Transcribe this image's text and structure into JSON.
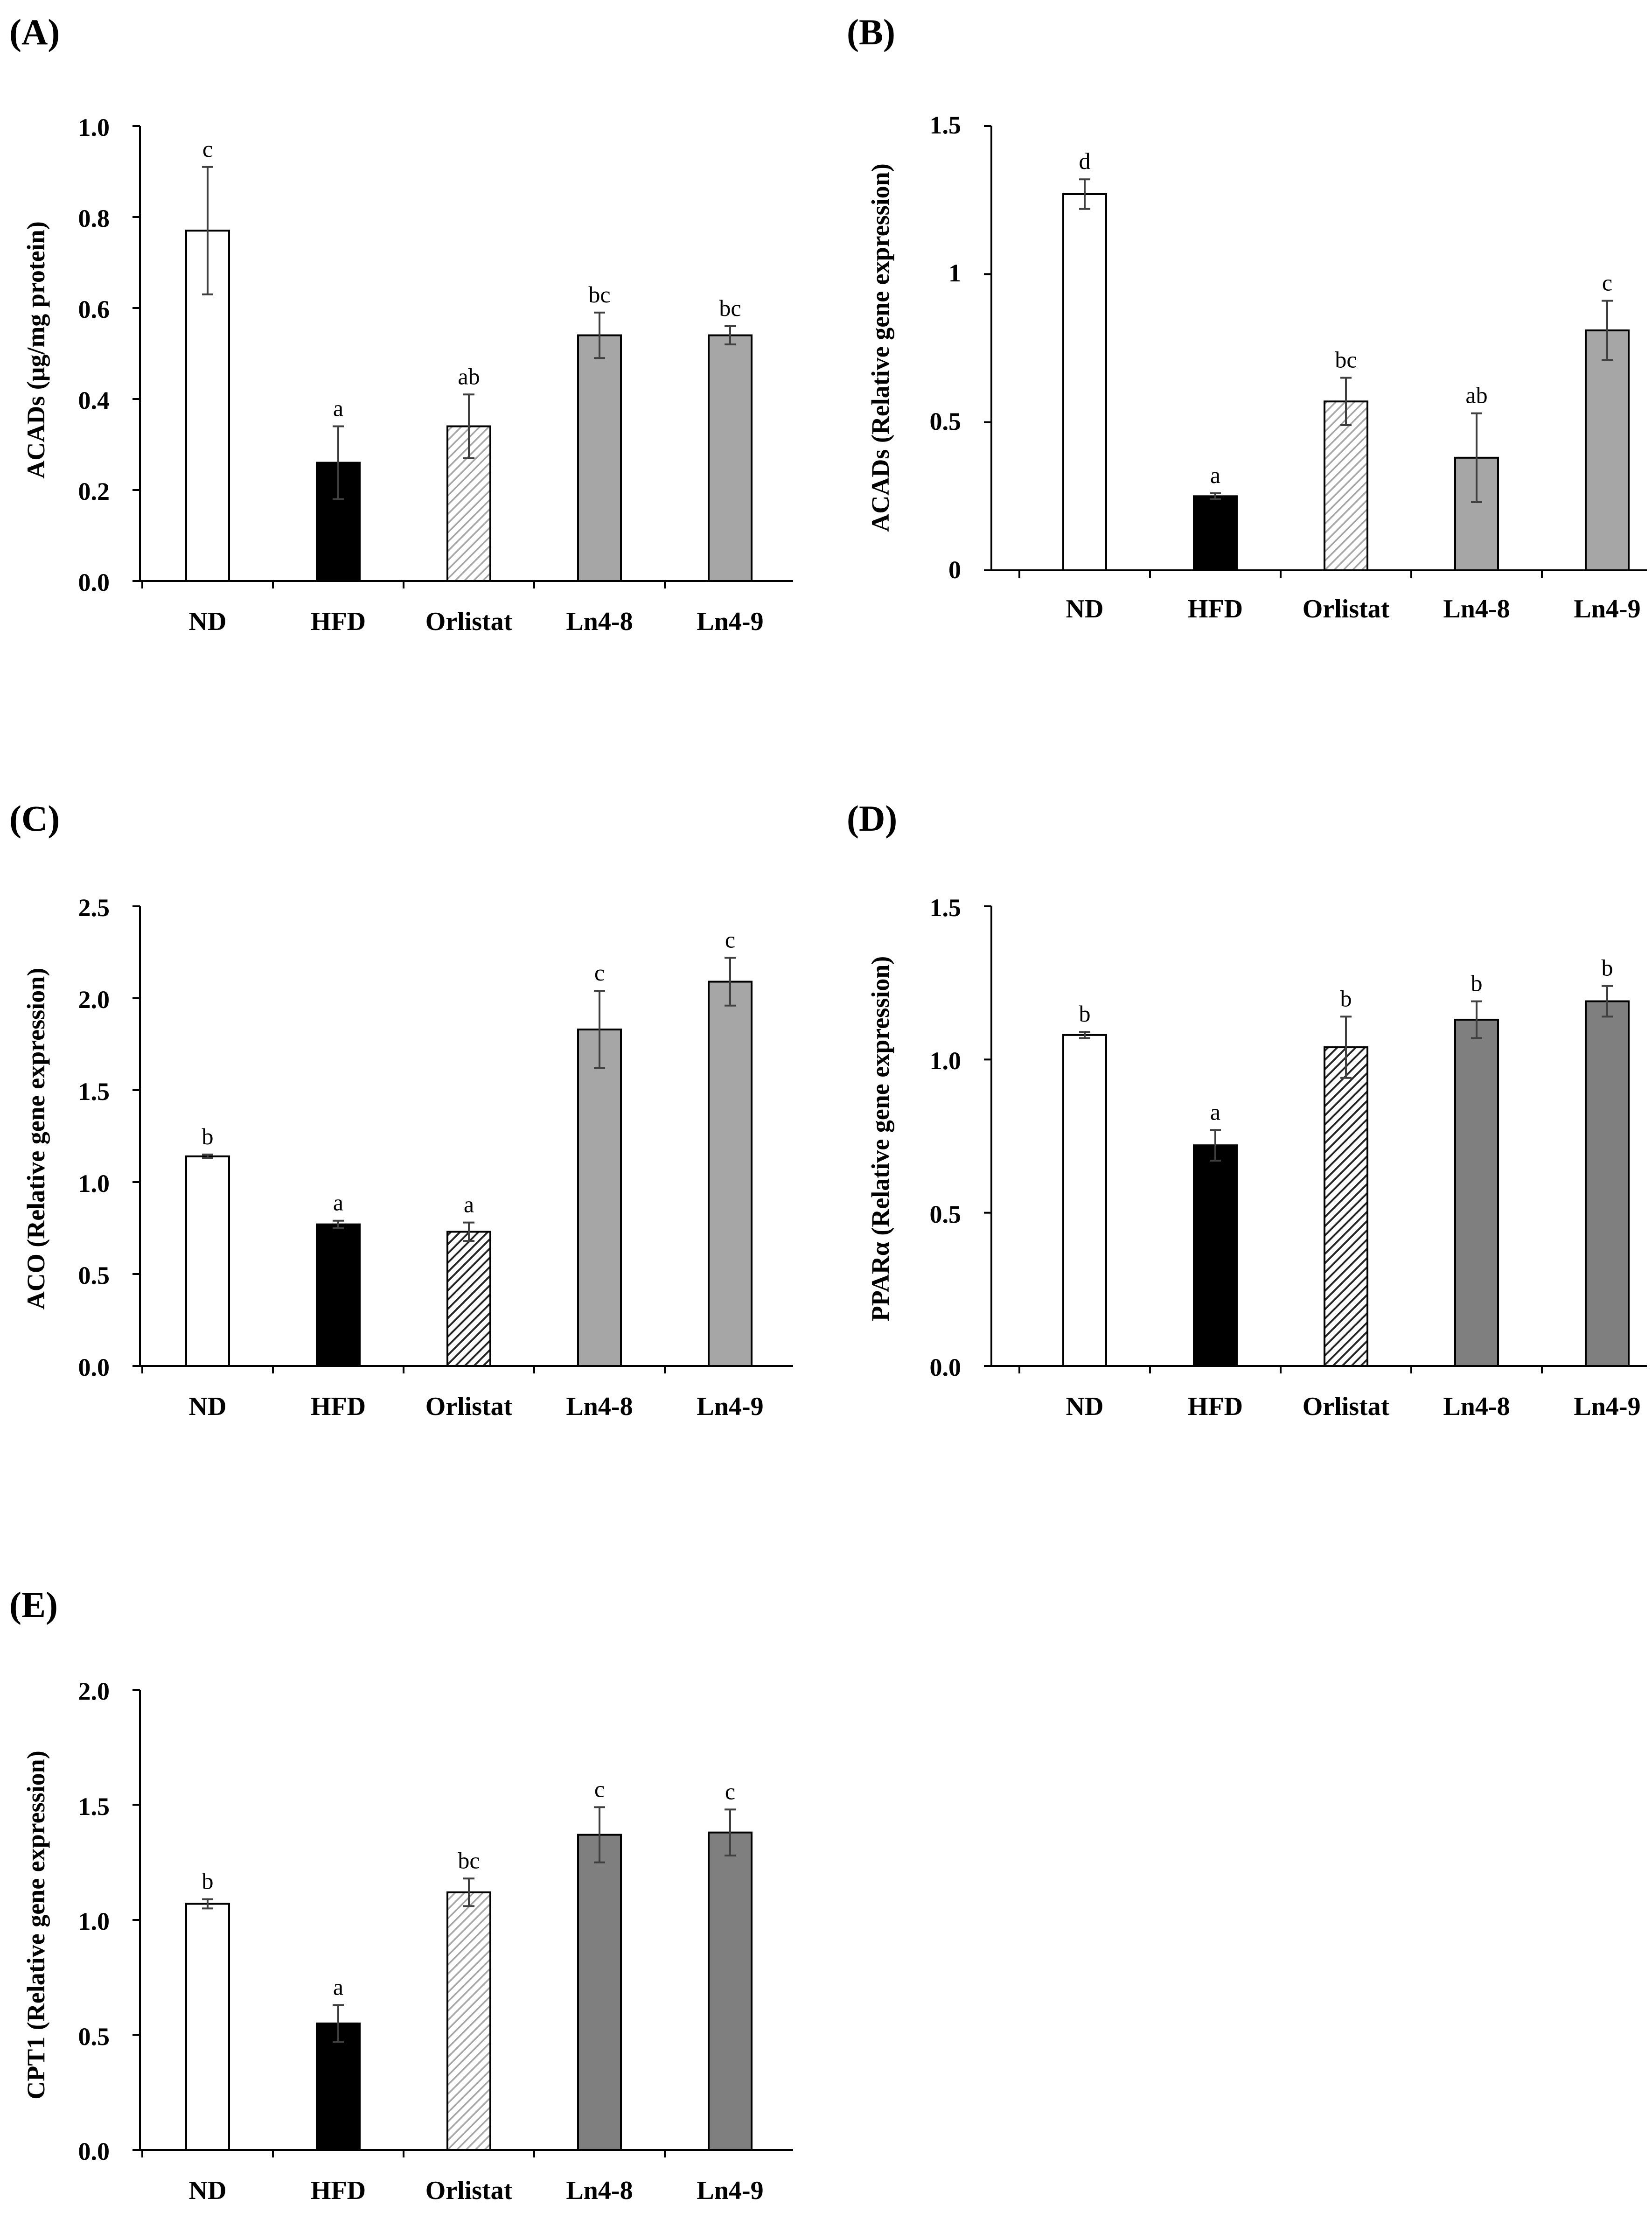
{
  "figure": {
    "colors": {
      "nd": "#ffffff",
      "hfd": "#000000",
      "orlistat_light": "#a6a6a6",
      "orlistat_dark": "#262626",
      "ln_light": "#a6a6a6",
      "ln_dark": "#7f7f7f",
      "axis": "#000000",
      "errorbar": "#404040"
    }
  },
  "chart_data": [
    {
      "id": "A",
      "panel_label": "(A)",
      "type": "bar",
      "title": "",
      "xlabel": "",
      "ylabel": "ACADs (μg/mg protein)",
      "categories": [
        "ND",
        "HFD",
        "Orlistat",
        "Ln4-8",
        "Ln4-9"
      ],
      "values": [
        0.77,
        0.26,
        0.34,
        0.54,
        0.54
      ],
      "errors": [
        0.14,
        0.08,
        0.07,
        0.05,
        0.02
      ],
      "significance": [
        "c",
        "a",
        "ab",
        "bc",
        "bc"
      ],
      "ylim": [
        0,
        1.0
      ],
      "yticks": [
        0.0,
        0.2,
        0.4,
        0.6,
        0.8,
        1.0
      ],
      "ytick_labels": [
        "0.0",
        "0.2",
        "0.4",
        "0.6",
        "0.8",
        "1.0"
      ],
      "fills": [
        "white",
        "black",
        "hatch-light",
        "gray-light",
        "gray-light"
      ],
      "grid": false
    },
    {
      "id": "B",
      "panel_label": "(B)",
      "type": "bar",
      "title": "",
      "xlabel": "",
      "ylabel": "ACADs (Relative gene expression)",
      "categories": [
        "ND",
        "HFD",
        "Orlistat",
        "Ln4-8",
        "Ln4-9"
      ],
      "values": [
        1.27,
        0.25,
        0.57,
        0.38,
        0.81
      ],
      "errors": [
        0.05,
        0.01,
        0.08,
        0.15,
        0.1
      ],
      "significance": [
        "d",
        "a",
        "bc",
        "ab",
        "c"
      ],
      "ylim": [
        0,
        1.5
      ],
      "yticks": [
        0,
        0.5,
        1.0,
        1.5
      ],
      "ytick_labels": [
        "0",
        "0.5",
        "1",
        "1.5"
      ],
      "fills": [
        "white",
        "black",
        "hatch-light",
        "gray-light",
        "gray-light"
      ],
      "grid": false
    },
    {
      "id": "C",
      "panel_label": "(C)",
      "type": "bar",
      "title": "",
      "xlabel": "",
      "ylabel": "ACO (Relative gene expression)",
      "categories": [
        "ND",
        "HFD",
        "Orlistat",
        "Ln4-8",
        "Ln4-9"
      ],
      "values": [
        1.14,
        0.77,
        0.73,
        1.83,
        2.09
      ],
      "errors": [
        0.01,
        0.02,
        0.05,
        0.21,
        0.13
      ],
      "significance": [
        "b",
        "a",
        "a",
        "c",
        "c"
      ],
      "ylim": [
        0,
        2.5
      ],
      "yticks": [
        0.0,
        0.5,
        1.0,
        1.5,
        2.0,
        2.5
      ],
      "ytick_labels": [
        "0.0",
        "0.5",
        "1.0",
        "1.5",
        "2.0",
        "2.5"
      ],
      "fills": [
        "white",
        "black",
        "hatch-dark",
        "gray-light",
        "gray-light"
      ],
      "grid": false
    },
    {
      "id": "D",
      "panel_label": "(D)",
      "type": "bar",
      "title": "",
      "xlabel": "",
      "ylabel": "PPARα (Relative gene expression)",
      "categories": [
        "ND",
        "HFD",
        "Orlistat",
        "Ln4-8",
        "Ln4-9"
      ],
      "values": [
        1.08,
        0.72,
        1.04,
        1.13,
        1.19
      ],
      "errors": [
        0.01,
        0.05,
        0.1,
        0.06,
        0.05
      ],
      "significance": [
        "b",
        "a",
        "b",
        "b",
        "b"
      ],
      "ylim": [
        0,
        1.5
      ],
      "yticks": [
        0.0,
        0.5,
        1.0,
        1.5
      ],
      "ytick_labels": [
        "0.0",
        "0.5",
        "1.0",
        "1.5"
      ],
      "fills": [
        "white",
        "black",
        "hatch-dark",
        "gray-dark",
        "gray-dark"
      ],
      "grid": false
    },
    {
      "id": "E",
      "panel_label": "(E)",
      "type": "bar",
      "title": "",
      "xlabel": "",
      "ylabel": "CPT1 (Relative gene expression)",
      "categories": [
        "ND",
        "HFD",
        "Orlistat",
        "Ln4-8",
        "Ln4-9"
      ],
      "values": [
        1.07,
        0.55,
        1.12,
        1.37,
        1.38
      ],
      "errors": [
        0.02,
        0.08,
        0.06,
        0.12,
        0.1
      ],
      "significance": [
        "b",
        "a",
        "bc",
        "c",
        "c"
      ],
      "ylim": [
        0,
        2.0
      ],
      "yticks": [
        0.0,
        0.5,
        1.0,
        1.5,
        2.0
      ],
      "ytick_labels": [
        "0.0",
        "0.5",
        "1.0",
        "1.5",
        "2.0"
      ],
      "fills": [
        "white",
        "black",
        "hatch-light",
        "gray-dark",
        "gray-dark"
      ],
      "grid": false
    }
  ]
}
